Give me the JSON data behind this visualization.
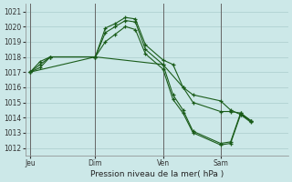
{
  "xlabel": "Pression niveau de la mer( hPa )",
  "bg_color": "#cce8e8",
  "grid_color": "#aacccc",
  "line_color": "#1a5c1a",
  "vline_color": "#666666",
  "ylim": [
    1011.5,
    1021.5
  ],
  "yticks": [
    1012,
    1013,
    1014,
    1015,
    1016,
    1017,
    1018,
    1019,
    1020,
    1021
  ],
  "xlim": [
    0,
    10.5
  ],
  "day_labels": [
    "Jeu",
    "Dim",
    "Ven",
    "Sam"
  ],
  "day_positions": [
    0.2,
    2.8,
    5.5,
    7.8
  ],
  "series1_x": [
    0.2,
    0.6,
    1.0,
    2.8,
    3.2,
    3.6,
    4.0,
    4.4,
    4.8,
    5.5,
    5.9,
    6.3,
    6.7,
    7.8,
    8.2,
    8.6,
    9.0
  ],
  "series1_y": [
    1017.0,
    1017.7,
    1018.0,
    1018.0,
    1019.9,
    1020.2,
    1020.6,
    1020.5,
    1018.8,
    1017.8,
    1017.5,
    1016.0,
    1015.5,
    1015.1,
    1014.5,
    1014.2,
    1013.8
  ],
  "series2_x": [
    0.2,
    0.6,
    1.0,
    2.8,
    3.2,
    3.6,
    4.0,
    4.4,
    4.8,
    5.5,
    5.9,
    6.3,
    6.7,
    7.8,
    8.2,
    8.6,
    9.0
  ],
  "series2_y": [
    1017.0,
    1017.5,
    1018.0,
    1018.0,
    1019.6,
    1020.0,
    1020.4,
    1020.3,
    1018.5,
    1017.5,
    1015.5,
    1014.5,
    1013.1,
    1012.3,
    1012.4,
    1014.3,
    1013.8
  ],
  "series3_x": [
    0.2,
    0.6,
    1.0,
    2.8,
    3.2,
    3.6,
    4.0,
    4.4,
    4.8,
    5.5,
    5.9,
    6.3,
    6.7,
    7.8,
    8.2,
    8.6,
    9.0
  ],
  "series3_y": [
    1017.0,
    1017.3,
    1018.0,
    1018.0,
    1019.0,
    1019.5,
    1020.0,
    1019.8,
    1018.2,
    1017.2,
    1015.2,
    1014.3,
    1013.0,
    1012.2,
    1012.3,
    1014.2,
    1013.7
  ],
  "series4_x": [
    0.2,
    2.8,
    5.5,
    6.3,
    6.7,
    7.8,
    8.2,
    8.6,
    9.0
  ],
  "series4_y": [
    1017.0,
    1018.0,
    1017.5,
    1016.0,
    1015.0,
    1014.4,
    1014.4,
    1014.3,
    1013.8
  ]
}
